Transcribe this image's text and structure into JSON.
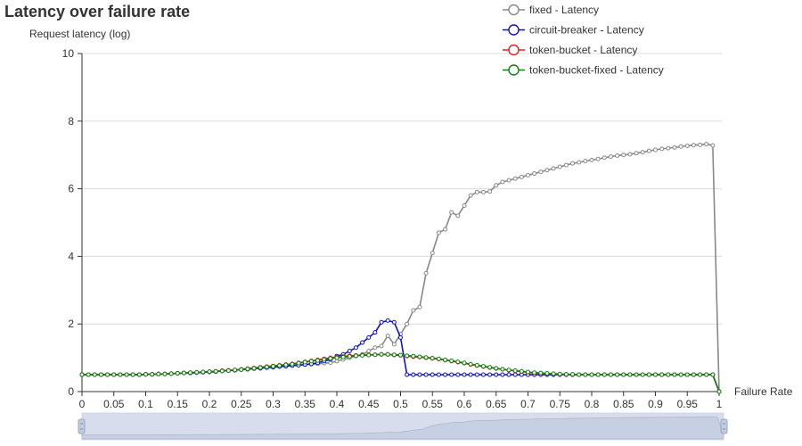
{
  "chart_data": {
    "type": "line",
    "title": "Latency over failure rate",
    "xlabel": "Failure Rate",
    "ylabel": "Request latency (log)",
    "xlim": [
      0,
      1
    ],
    "ylim": [
      0,
      10
    ],
    "x_ticks": [
      "0",
      "0.05",
      "0.1",
      "0.15",
      "0.2",
      "0.25",
      "0.3",
      "0.35",
      "0.4",
      "0.45",
      "0.5",
      "0.55",
      "0.6",
      "0.65",
      "0.7",
      "0.75",
      "0.8",
      "0.85",
      "0.9",
      "0.95",
      "1"
    ],
    "y_ticks": [
      "0",
      "2",
      "4",
      "6",
      "8",
      "10"
    ],
    "grid": true,
    "legend_position": "top-right",
    "data_zoom": true,
    "x": [
      0,
      0.01,
      0.02,
      0.03,
      0.04,
      0.05,
      0.06,
      0.07,
      0.08,
      0.09,
      0.1,
      0.11,
      0.12,
      0.13,
      0.14,
      0.15,
      0.16,
      0.17,
      0.18,
      0.19,
      0.2,
      0.21,
      0.22,
      0.23,
      0.24,
      0.25,
      0.26,
      0.27,
      0.28,
      0.29,
      0.3,
      0.31,
      0.32,
      0.33,
      0.34,
      0.35,
      0.36,
      0.37,
      0.38,
      0.39,
      0.4,
      0.41,
      0.42,
      0.43,
      0.44,
      0.45,
      0.46,
      0.47,
      0.48,
      0.49,
      0.5,
      0.51,
      0.52,
      0.53,
      0.54,
      0.55,
      0.56,
      0.57,
      0.58,
      0.59,
      0.6,
      0.61,
      0.62,
      0.63,
      0.64,
      0.65,
      0.66,
      0.67,
      0.68,
      0.69,
      0.7,
      0.71,
      0.72,
      0.73,
      0.74,
      0.75,
      0.76,
      0.77,
      0.78,
      0.79,
      0.8,
      0.81,
      0.82,
      0.83,
      0.84,
      0.85,
      0.86,
      0.87,
      0.88,
      0.89,
      0.9,
      0.91,
      0.92,
      0.93,
      0.94,
      0.95,
      0.96,
      0.97,
      0.98,
      0.99,
      1
    ],
    "series": [
      {
        "name": "fixed - Latency",
        "color": "#888888",
        "values": [
          0.5,
          0.5,
          0.5,
          0.5,
          0.5,
          0.5,
          0.5,
          0.5,
          0.5,
          0.5,
          0.51,
          0.51,
          0.52,
          0.52,
          0.53,
          0.54,
          0.55,
          0.55,
          0.56,
          0.57,
          0.58,
          0.59,
          0.61,
          0.62,
          0.63,
          0.65,
          0.66,
          0.68,
          0.69,
          0.71,
          0.72,
          0.74,
          0.75,
          0.77,
          0.78,
          0.8,
          0.81,
          0.82,
          0.84,
          0.85,
          0.9,
          0.95,
          1.0,
          1.05,
          1.1,
          1.2,
          1.3,
          1.35,
          1.65,
          1.4,
          1.7,
          2.0,
          2.4,
          2.5,
          3.5,
          4.1,
          4.7,
          4.8,
          5.3,
          5.2,
          5.5,
          5.8,
          5.9,
          5.9,
          5.92,
          6.1,
          6.2,
          6.25,
          6.3,
          6.35,
          6.4,
          6.45,
          6.5,
          6.55,
          6.6,
          6.65,
          6.7,
          6.75,
          6.78,
          6.82,
          6.85,
          6.88,
          6.92,
          6.95,
          6.98,
          7.0,
          7.02,
          7.05,
          7.08,
          7.12,
          7.15,
          7.18,
          7.2,
          7.22,
          7.25,
          7.27,
          7.29,
          7.3,
          7.32,
          7.28,
          0.0
        ]
      },
      {
        "name": "circuit-breaker - Latency",
        "color": "#1010d0",
        "values": [
          0.5,
          0.5,
          0.5,
          0.5,
          0.5,
          0.5,
          0.5,
          0.5,
          0.5,
          0.5,
          0.51,
          0.51,
          0.52,
          0.52,
          0.53,
          0.54,
          0.55,
          0.55,
          0.56,
          0.57,
          0.58,
          0.59,
          0.61,
          0.62,
          0.63,
          0.65,
          0.66,
          0.68,
          0.69,
          0.71,
          0.72,
          0.74,
          0.75,
          0.77,
          0.78,
          0.8,
          0.82,
          0.85,
          0.9,
          0.95,
          1.05,
          1.1,
          1.2,
          1.3,
          1.45,
          1.6,
          1.75,
          2.05,
          2.1,
          2.05,
          1.6,
          0.5,
          0.5,
          0.5,
          0.5,
          0.5,
          0.5,
          0.5,
          0.5,
          0.5,
          0.5,
          0.5,
          0.5,
          0.5,
          0.5,
          0.5,
          0.5,
          0.5,
          0.5,
          0.5,
          0.5,
          0.5,
          0.5,
          0.5,
          0.5,
          0.5,
          0.5,
          0.5,
          0.5,
          0.5,
          0.5,
          0.5,
          0.5,
          0.5,
          0.5,
          0.5,
          0.5,
          0.5,
          0.5,
          0.5,
          0.5,
          0.5,
          0.5,
          0.5,
          0.5,
          0.5,
          0.5,
          0.5,
          0.5,
          0.5,
          0.0
        ]
      },
      {
        "name": "token-bucket - Latency",
        "color": "#e02020",
        "values": [
          0.5,
          0.5,
          0.5,
          0.5,
          0.5,
          0.5,
          0.5,
          0.5,
          0.5,
          0.5,
          0.51,
          0.51,
          0.52,
          0.52,
          0.53,
          0.54,
          0.55,
          0.56,
          0.57,
          0.58,
          0.59,
          0.6,
          0.62,
          0.63,
          0.64,
          0.66,
          0.68,
          0.7,
          0.72,
          0.74,
          0.76,
          0.78,
          0.8,
          0.82,
          0.85,
          0.88,
          0.91,
          0.94,
          0.97,
          1.0,
          1.02,
          1.04,
          1.06,
          1.07,
          1.08,
          1.09,
          1.09,
          1.1,
          1.1,
          1.08,
          1.07,
          1.05,
          1.03,
          1.02,
          1.0,
          0.98,
          0.96,
          0.93,
          0.9,
          0.87,
          0.84,
          0.8,
          0.77,
          0.74,
          0.71,
          0.68,
          0.66,
          0.63,
          0.61,
          0.59,
          0.57,
          0.55,
          0.54,
          0.53,
          0.52,
          0.51,
          0.51,
          0.5,
          0.5,
          0.5,
          0.5,
          0.5,
          0.5,
          0.5,
          0.5,
          0.5,
          0.5,
          0.5,
          0.5,
          0.5,
          0.5,
          0.5,
          0.5,
          0.5,
          0.5,
          0.5,
          0.5,
          0.5,
          0.5,
          0.5,
          0.0
        ]
      },
      {
        "name": "token-bucket-fixed - Latency",
        "color": "#108010",
        "values": [
          0.5,
          0.5,
          0.5,
          0.5,
          0.5,
          0.5,
          0.5,
          0.5,
          0.5,
          0.5,
          0.51,
          0.51,
          0.52,
          0.52,
          0.53,
          0.54,
          0.55,
          0.56,
          0.57,
          0.58,
          0.59,
          0.6,
          0.61,
          0.62,
          0.64,
          0.65,
          0.67,
          0.69,
          0.71,
          0.73,
          0.75,
          0.77,
          0.79,
          0.81,
          0.84,
          0.87,
          0.9,
          0.92,
          0.95,
          0.98,
          1.0,
          1.02,
          1.04,
          1.06,
          1.07,
          1.08,
          1.09,
          1.1,
          1.1,
          1.09,
          1.08,
          1.06,
          1.05,
          1.03,
          1.01,
          0.99,
          0.97,
          0.94,
          0.91,
          0.88,
          0.85,
          0.81,
          0.78,
          0.75,
          0.72,
          0.69,
          0.66,
          0.64,
          0.62,
          0.6,
          0.58,
          0.56,
          0.55,
          0.54,
          0.53,
          0.52,
          0.51,
          0.51,
          0.5,
          0.5,
          0.5,
          0.5,
          0.5,
          0.5,
          0.5,
          0.5,
          0.5,
          0.5,
          0.5,
          0.5,
          0.5,
          0.5,
          0.5,
          0.5,
          0.5,
          0.5,
          0.5,
          0.5,
          0.5,
          0.5,
          0.0
        ]
      }
    ]
  }
}
